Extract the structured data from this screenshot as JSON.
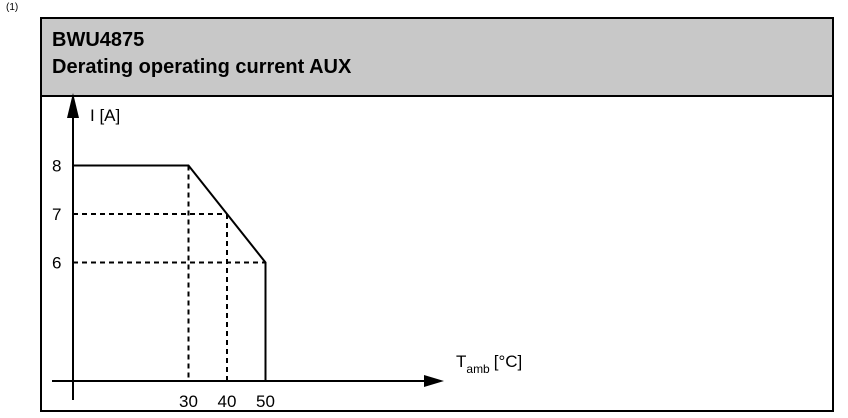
{
  "footnote": "(1)",
  "header": {
    "model": "BWU4875",
    "title": "Derating operating current AUX"
  },
  "chart_data": {
    "type": "line",
    "ylabel": "I [A]",
    "xlabel_main": "T",
    "xlabel_sub": "amb",
    "xlabel_unit": "[°C]",
    "x_ticks": [
      30,
      40,
      50
    ],
    "y_ticks": [
      8,
      7,
      6
    ],
    "x": [
      0,
      30,
      40,
      50,
      50
    ],
    "y": [
      8,
      8,
      7,
      6,
      0
    ],
    "dashed_refs": [
      {
        "x": 30,
        "y": 8
      },
      {
        "x": 40,
        "y": 7
      },
      {
        "x": 50,
        "y": 6
      }
    ],
    "grid": false,
    "legend": "none"
  }
}
